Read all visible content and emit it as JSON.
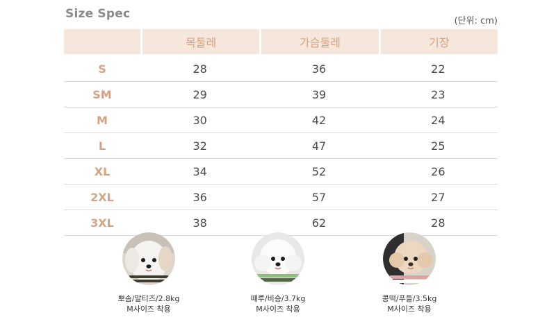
{
  "title": "Size Spec",
  "unit_note": "(단위: cm)",
  "table": {
    "headers": [
      "목둘레",
      "가슴둘레",
      "기장"
    ],
    "rows": [
      {
        "size": "S",
        "values": [
          "28",
          "36",
          "22"
        ]
      },
      {
        "size": "SM",
        "values": [
          "29",
          "39",
          "23"
        ]
      },
      {
        "size": "M",
        "values": [
          "30",
          "42",
          "24"
        ]
      },
      {
        "size": "L",
        "values": [
          "32",
          "47",
          "25"
        ]
      },
      {
        "size": "XL",
        "values": [
          "34",
          "52",
          "26"
        ]
      },
      {
        "size": "2XL",
        "values": [
          "36",
          "57",
          "27"
        ]
      },
      {
        "size": "3XL",
        "values": [
          "38",
          "62",
          "28"
        ]
      }
    ]
  },
  "dogs": [
    {
      "line1": "뽀솜/말티즈/2.8kg",
      "line2": "M사이즈 착용"
    },
    {
      "line1": "떄루/비숑/3.7kg",
      "line2": "M사이즈 착용"
    },
    {
      "line1": "콩떡/푸들/3.5kg",
      "line2": "M사이즈 착용"
    }
  ],
  "colors": {
    "accent": "#d4a383",
    "header_bg": "#f6e7dc",
    "title": "#8a8a8a"
  }
}
